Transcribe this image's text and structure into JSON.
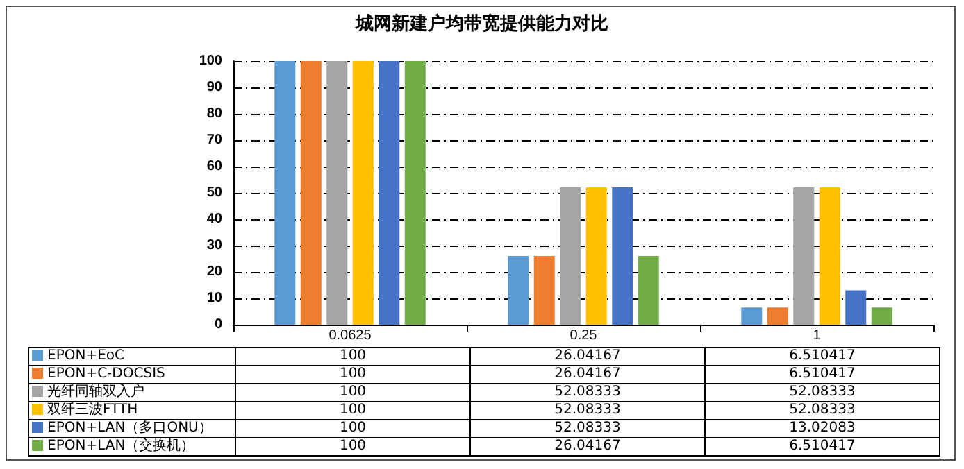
{
  "chart_data": {
    "type": "bar",
    "title": "城网新建户均带宽提供能力对比",
    "categories": [
      "0.0625",
      "0.25",
      "1"
    ],
    "series": [
      {
        "name": "EPON+EoC",
        "color": "#5b9bd5",
        "values": [
          100,
          26.04167,
          6.510417
        ]
      },
      {
        "name": "EPON+C-DOCSIS",
        "color": "#ed7d31",
        "values": [
          100,
          26.04167,
          6.510417
        ]
      },
      {
        "name": "光纤同轴双入户",
        "color": "#a5a5a5",
        "values": [
          100,
          52.08333,
          52.08333
        ]
      },
      {
        "name": "双纤三波FTTH",
        "color": "#ffc000",
        "values": [
          100,
          52.08333,
          52.08333
        ]
      },
      {
        "name": "EPON+LAN（多口ONU）",
        "color": "#4472c4",
        "values": [
          100,
          52.08333,
          13.02083
        ]
      },
      {
        "name": "EPON+LAN（交换机）",
        "color": "#70ad47",
        "values": [
          100,
          26.04167,
          6.510417
        ]
      }
    ],
    "ylim": [
      0,
      100
    ],
    "yticks": [
      0,
      10,
      20,
      30,
      40,
      50,
      60,
      70,
      80,
      90,
      100
    ],
    "grid": "y",
    "legend": "bottom",
    "data_labels": true
  }
}
